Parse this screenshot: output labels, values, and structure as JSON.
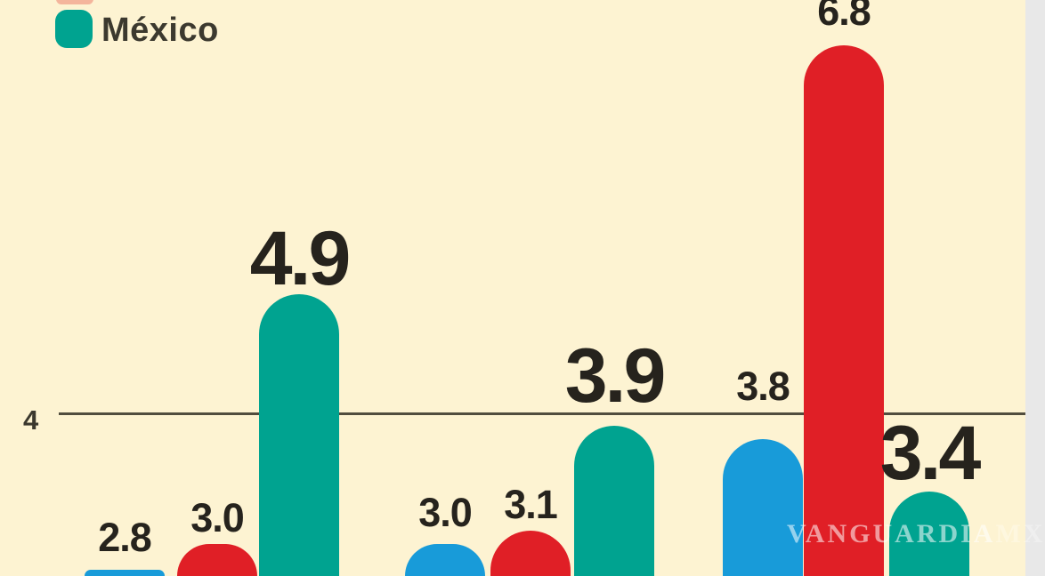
{
  "page": {
    "background": "#fdf3d2"
  },
  "legend": {
    "items": [
      {
        "label": "México",
        "color": "#00a390"
      }
    ]
  },
  "watermark": {
    "text": "VANGUARDIA",
    "suffix": "MX"
  },
  "chart_data": {
    "type": "bar",
    "orientation": "vertical",
    "title": "",
    "xlabel": "",
    "ylabel": "",
    "legend_position": "top-left",
    "background": "#fdf3d2",
    "grid": "single-reference-line",
    "reference_line": {
      "value": 4,
      "label": "4",
      "color": "#514d3e"
    },
    "colors": {
      "blue": "#189bd9",
      "red": "#e01f26",
      "teal": "#00a390"
    },
    "legend_entries": [
      {
        "label": "México",
        "color_key": "teal"
      }
    ],
    "value_label_color": "#26231d",
    "groups": [
      {
        "bars": [
          {
            "color": "blue",
            "value": 2.8,
            "label": "2.8",
            "emphasis": false
          },
          {
            "color": "red",
            "value": 3.0,
            "label": "3.0",
            "emphasis": false
          },
          {
            "color": "teal",
            "value": 4.9,
            "label": "4.9",
            "emphasis": true
          }
        ]
      },
      {
        "bars": [
          {
            "color": "blue",
            "value": 3.0,
            "label": "3.0",
            "emphasis": false
          },
          {
            "color": "red",
            "value": 3.1,
            "label": "3.1",
            "emphasis": false
          },
          {
            "color": "teal",
            "value": 3.9,
            "label": "3.9",
            "emphasis": true
          }
        ]
      },
      {
        "bars": [
          {
            "color": "blue",
            "value": 3.8,
            "label": "3.8",
            "emphasis": false
          },
          {
            "color": "red",
            "value": 6.8,
            "label": "6.8",
            "emphasis": false
          },
          {
            "color": "teal",
            "value": 3.4,
            "label": "3.4",
            "emphasis": true
          }
        ]
      }
    ]
  }
}
